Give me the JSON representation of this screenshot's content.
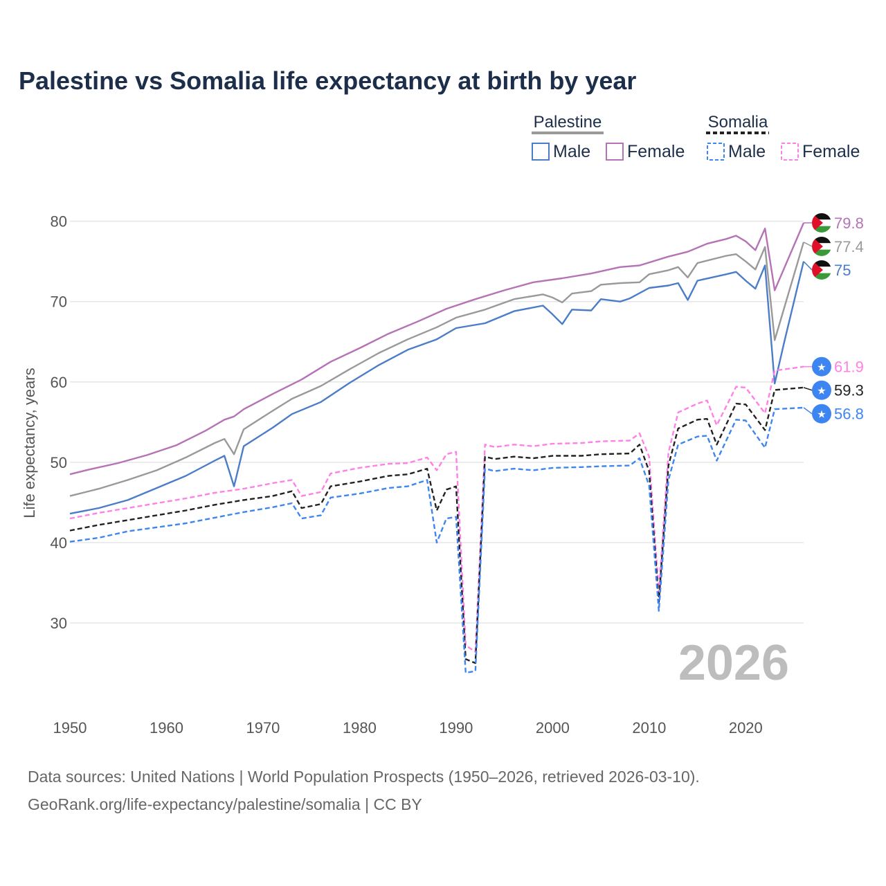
{
  "chart_data": {
    "type": "line",
    "title": "Palestine vs Somalia life expectancy at birth by year",
    "xlabel": "",
    "ylabel": "Life expectancy, years",
    "xlim": [
      1950,
      2026
    ],
    "ylim": [
      20,
      86
    ],
    "x_ticks": [
      "1950",
      "1960",
      "1970",
      "1980",
      "1990",
      "2000",
      "2010",
      "2020"
    ],
    "y_ticks": [
      "30",
      "40",
      "50",
      "60",
      "70",
      "80"
    ],
    "grid": true,
    "current_year": "2026",
    "legend": {
      "groups": [
        {
          "name": "Palestine",
          "items": [
            "Male",
            "Female"
          ]
        },
        {
          "name": "Somalia",
          "items": [
            "Male",
            "Female"
          ]
        }
      ]
    },
    "series": [
      {
        "name": "Palestine Female",
        "country": "Palestine",
        "sex": "Female",
        "color": "#b572b5",
        "dashed": false,
        "end_label": "79.8",
        "end_value": 79.8,
        "points": [
          [
            1950,
            48.5
          ],
          [
            1952,
            49.1
          ],
          [
            1955,
            49.9
          ],
          [
            1958,
            50.9
          ],
          [
            1961,
            52.1
          ],
          [
            1964,
            53.9
          ],
          [
            1966,
            55.3
          ],
          [
            1967,
            55.7
          ],
          [
            1968,
            56.6
          ],
          [
            1971,
            58.5
          ],
          [
            1974,
            60.3
          ],
          [
            1977,
            62.5
          ],
          [
            1980,
            64.2
          ],
          [
            1983,
            66.0
          ],
          [
            1986,
            67.5
          ],
          [
            1989,
            69.1
          ],
          [
            1992,
            70.3
          ],
          [
            1995,
            71.4
          ],
          [
            1998,
            72.4
          ],
          [
            2001,
            72.9
          ],
          [
            2004,
            73.5
          ],
          [
            2007,
            74.3
          ],
          [
            2009,
            74.5
          ],
          [
            2012,
            75.6
          ],
          [
            2014,
            76.2
          ],
          [
            2016,
            77.2
          ],
          [
            2018,
            77.8
          ],
          [
            2019,
            78.2
          ],
          [
            2020,
            77.5
          ],
          [
            2021,
            76.4
          ],
          [
            2022,
            79.1
          ],
          [
            2023,
            71.4
          ],
          [
            2026,
            79.8
          ]
        ]
      },
      {
        "name": "Palestine Total",
        "country": "Palestine",
        "sex": "Total",
        "color": "#999999",
        "dashed": false,
        "end_label": "77.4",
        "end_value": 77.4,
        "points": [
          [
            1950,
            45.8
          ],
          [
            1953,
            46.7
          ],
          [
            1956,
            47.8
          ],
          [
            1959,
            49.0
          ],
          [
            1962,
            50.6
          ],
          [
            1965,
            52.4
          ],
          [
            1966,
            52.9
          ],
          [
            1967,
            51.0
          ],
          [
            1968,
            54.1
          ],
          [
            1971,
            56.4
          ],
          [
            1973,
            57.9
          ],
          [
            1976,
            59.5
          ],
          [
            1979,
            61.6
          ],
          [
            1982,
            63.6
          ],
          [
            1985,
            65.3
          ],
          [
            1988,
            66.8
          ],
          [
            1990,
            68.0
          ],
          [
            1993,
            69.0
          ],
          [
            1996,
            70.3
          ],
          [
            1999,
            70.9
          ],
          [
            2000,
            70.5
          ],
          [
            2001,
            69.9
          ],
          [
            2002,
            71.0
          ],
          [
            2004,
            71.3
          ],
          [
            2005,
            72.1
          ],
          [
            2007,
            72.3
          ],
          [
            2009,
            72.4
          ],
          [
            2010,
            73.4
          ],
          [
            2012,
            73.9
          ],
          [
            2013,
            74.3
          ],
          [
            2014,
            73.0
          ],
          [
            2015,
            74.8
          ],
          [
            2018,
            75.7
          ],
          [
            2019,
            75.9
          ],
          [
            2020,
            75.0
          ],
          [
            2021,
            74.0
          ],
          [
            2022,
            76.8
          ],
          [
            2023,
            65.2
          ],
          [
            2026,
            77.4
          ]
        ]
      },
      {
        "name": "Palestine Male",
        "country": "Palestine",
        "sex": "Male",
        "color": "#4a7cc7",
        "dashed": false,
        "end_label": "75",
        "end_value": 75.0,
        "points": [
          [
            1950,
            43.6
          ],
          [
            1953,
            44.3
          ],
          [
            1956,
            45.3
          ],
          [
            1959,
            46.8
          ],
          [
            1962,
            48.3
          ],
          [
            1965,
            50.2
          ],
          [
            1966,
            50.8
          ],
          [
            1967,
            47.0
          ],
          [
            1968,
            52.0
          ],
          [
            1971,
            54.3
          ],
          [
            1973,
            56.0
          ],
          [
            1976,
            57.5
          ],
          [
            1979,
            59.9
          ],
          [
            1982,
            62.1
          ],
          [
            1985,
            64.0
          ],
          [
            1988,
            65.3
          ],
          [
            1990,
            66.7
          ],
          [
            1993,
            67.3
          ],
          [
            1996,
            68.8
          ],
          [
            1999,
            69.5
          ],
          [
            2000,
            68.4
          ],
          [
            2001,
            67.2
          ],
          [
            2002,
            69.0
          ],
          [
            2004,
            68.9
          ],
          [
            2005,
            70.3
          ],
          [
            2007,
            70.0
          ],
          [
            2008,
            70.4
          ],
          [
            2010,
            71.7
          ],
          [
            2012,
            72.0
          ],
          [
            2013,
            72.3
          ],
          [
            2014,
            70.2
          ],
          [
            2015,
            72.6
          ],
          [
            2018,
            73.4
          ],
          [
            2019,
            73.7
          ],
          [
            2020,
            72.6
          ],
          [
            2021,
            71.6
          ],
          [
            2022,
            74.5
          ],
          [
            2023,
            59.8
          ],
          [
            2024,
            65.0
          ],
          [
            2026,
            75.0
          ]
        ]
      },
      {
        "name": "Somalia Female",
        "country": "Somalia",
        "sex": "Female",
        "color": "#ff80e6",
        "dashed": true,
        "end_label": "61.9",
        "end_value": 61.9,
        "points": [
          [
            1950,
            43.0
          ],
          [
            1953,
            43.7
          ],
          [
            1956,
            44.3
          ],
          [
            1959,
            44.9
          ],
          [
            1962,
            45.5
          ],
          [
            1965,
            46.2
          ],
          [
            1968,
            46.7
          ],
          [
            1971,
            47.4
          ],
          [
            1973,
            47.8
          ],
          [
            1974,
            45.8
          ],
          [
            1976,
            46.3
          ],
          [
            1977,
            48.6
          ],
          [
            1980,
            49.3
          ],
          [
            1983,
            49.8
          ],
          [
            1985,
            49.9
          ],
          [
            1987,
            50.6
          ],
          [
            1988,
            49.0
          ],
          [
            1989,
            51.0
          ],
          [
            1990,
            51.3
          ],
          [
            1991,
            27.2
          ],
          [
            1992,
            26.4
          ],
          [
            1993,
            52.2
          ],
          [
            1994,
            51.9
          ],
          [
            1996,
            52.2
          ],
          [
            1998,
            52.0
          ],
          [
            2000,
            52.3
          ],
          [
            2003,
            52.4
          ],
          [
            2005,
            52.6
          ],
          [
            2008,
            52.7
          ],
          [
            2009,
            53.6
          ],
          [
            2010,
            50.7
          ],
          [
            2011,
            33.8
          ],
          [
            2012,
            51.2
          ],
          [
            2013,
            56.2
          ],
          [
            2015,
            57.3
          ],
          [
            2016,
            57.7
          ],
          [
            2017,
            54.6
          ],
          [
            2019,
            59.4
          ],
          [
            2020,
            59.3
          ],
          [
            2022,
            56.1
          ],
          [
            2023,
            61.4
          ],
          [
            2026,
            61.9
          ]
        ]
      },
      {
        "name": "Somalia Total",
        "country": "Somalia",
        "sex": "Total",
        "color": "#222222",
        "dashed": true,
        "end_label": "59.3",
        "end_value": 59.3,
        "points": [
          [
            1950,
            41.5
          ],
          [
            1953,
            42.2
          ],
          [
            1956,
            42.8
          ],
          [
            1959,
            43.4
          ],
          [
            1962,
            44.0
          ],
          [
            1965,
            44.7
          ],
          [
            1968,
            45.3
          ],
          [
            1971,
            45.8
          ],
          [
            1973,
            46.4
          ],
          [
            1974,
            44.3
          ],
          [
            1976,
            44.8
          ],
          [
            1977,
            47.0
          ],
          [
            1980,
            47.6
          ],
          [
            1983,
            48.3
          ],
          [
            1985,
            48.5
          ],
          [
            1987,
            49.2
          ],
          [
            1988,
            44.0
          ],
          [
            1989,
            46.6
          ],
          [
            1990,
            47.0
          ],
          [
            1991,
            25.5
          ],
          [
            1992,
            25.0
          ],
          [
            1993,
            50.7
          ],
          [
            1994,
            50.4
          ],
          [
            1996,
            50.7
          ],
          [
            1998,
            50.5
          ],
          [
            2000,
            50.8
          ],
          [
            2003,
            50.8
          ],
          [
            2005,
            51.0
          ],
          [
            2008,
            51.1
          ],
          [
            2009,
            52.2
          ],
          [
            2010,
            48.9
          ],
          [
            2011,
            32.6
          ],
          [
            2012,
            49.6
          ],
          [
            2013,
            54.2
          ],
          [
            2015,
            55.3
          ],
          [
            2016,
            55.4
          ],
          [
            2017,
            52.2
          ],
          [
            2019,
            57.3
          ],
          [
            2020,
            57.2
          ],
          [
            2022,
            54.0
          ],
          [
            2023,
            59.0
          ],
          [
            2026,
            59.3
          ]
        ]
      },
      {
        "name": "Somalia Male",
        "country": "Somalia",
        "sex": "Male",
        "color": "#3d85f0",
        "dashed": true,
        "end_label": "56.8",
        "end_value": 56.8,
        "points": [
          [
            1950,
            40.1
          ],
          [
            1953,
            40.6
          ],
          [
            1956,
            41.4
          ],
          [
            1959,
            41.9
          ],
          [
            1962,
            42.4
          ],
          [
            1965,
            43.1
          ],
          [
            1968,
            43.8
          ],
          [
            1971,
            44.4
          ],
          [
            1973,
            44.9
          ],
          [
            1974,
            43.0
          ],
          [
            1976,
            43.4
          ],
          [
            1977,
            45.6
          ],
          [
            1980,
            46.1
          ],
          [
            1983,
            46.8
          ],
          [
            1985,
            47.0
          ],
          [
            1987,
            47.8
          ],
          [
            1988,
            40.0
          ],
          [
            1989,
            43.0
          ],
          [
            1990,
            43.2
          ],
          [
            1991,
            23.8
          ],
          [
            1992,
            24.0
          ],
          [
            1993,
            49.2
          ],
          [
            1994,
            48.9
          ],
          [
            1996,
            49.2
          ],
          [
            1998,
            49.0
          ],
          [
            2000,
            49.3
          ],
          [
            2003,
            49.4
          ],
          [
            2005,
            49.5
          ],
          [
            2008,
            49.6
          ],
          [
            2009,
            50.5
          ],
          [
            2010,
            47.1
          ],
          [
            2011,
            31.5
          ],
          [
            2012,
            47.8
          ],
          [
            2013,
            52.2
          ],
          [
            2015,
            53.2
          ],
          [
            2016,
            53.3
          ],
          [
            2017,
            50.2
          ],
          [
            2019,
            55.3
          ],
          [
            2020,
            55.2
          ],
          [
            2022,
            51.8
          ],
          [
            2023,
            56.6
          ],
          [
            2026,
            56.8
          ]
        ]
      }
    ]
  },
  "source": {
    "line1": "Data sources: United Nations | World Population Prospects (1950–2026, retrieved 2026-03-10).",
    "line2": "GeoRank.org/life-expectancy/palestine/somalia | CC BY"
  },
  "flag_icons": {
    "Palestine": "palestine-flag-icon",
    "Somalia": "somalia-flag-icon"
  },
  "colors": {
    "title": "#1c2e4a",
    "grid": "#e6e6e6",
    "year": "#bdbdbd",
    "palestine_legend_line": "#999999",
    "somalia_legend_line": "#222222"
  }
}
